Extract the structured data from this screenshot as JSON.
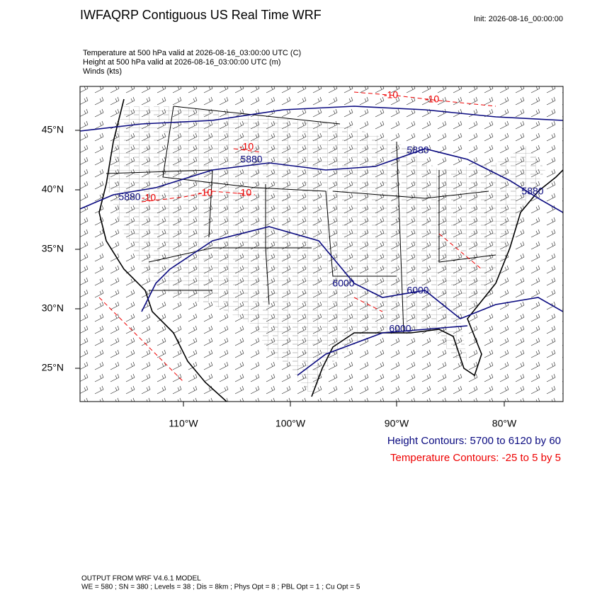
{
  "header": {
    "title": "IWFAQRP Contiguous US Real Time WRF",
    "init": "Init: 2026-08-16_00:00:00"
  },
  "fields": [
    "Temperature at 500 hPa valid at 2026-08-16_03:00:00 UTC   (C)",
    "Height at 500 hPa valid at 2026-08-16_03:00:00 UTC   (m)",
    "Winds   (kts)"
  ],
  "map": {
    "lat_labels": [
      "45°N",
      "40°N",
      "35°N",
      "30°N",
      "25°N"
    ],
    "lon_labels": [
      "110°W",
      "100°W",
      "90°W",
      "80°W"
    ],
    "height_contour_labels": [
      "5880",
      "5880",
      "5880",
      "5880",
      "6000",
      "6000",
      "6000"
    ],
    "temperature_contour_labels": [
      "-10",
      "-10",
      "-10",
      "-10",
      "-10",
      "-10"
    ]
  },
  "legend": {
    "height": "Height Contours: 5700 to 6120 by 60",
    "temperature": "Temperature Contours: -25 to 5 by 5"
  },
  "footer": [
    "OUTPUT FROM WRF V4.6.1 MODEL",
    "WE = 580 ; SN = 380 ; Levels = 38 ; Dis = 8km ; Phys Opt = 8 ; PBL Opt = 1 ; Cu Opt = 5"
  ]
}
